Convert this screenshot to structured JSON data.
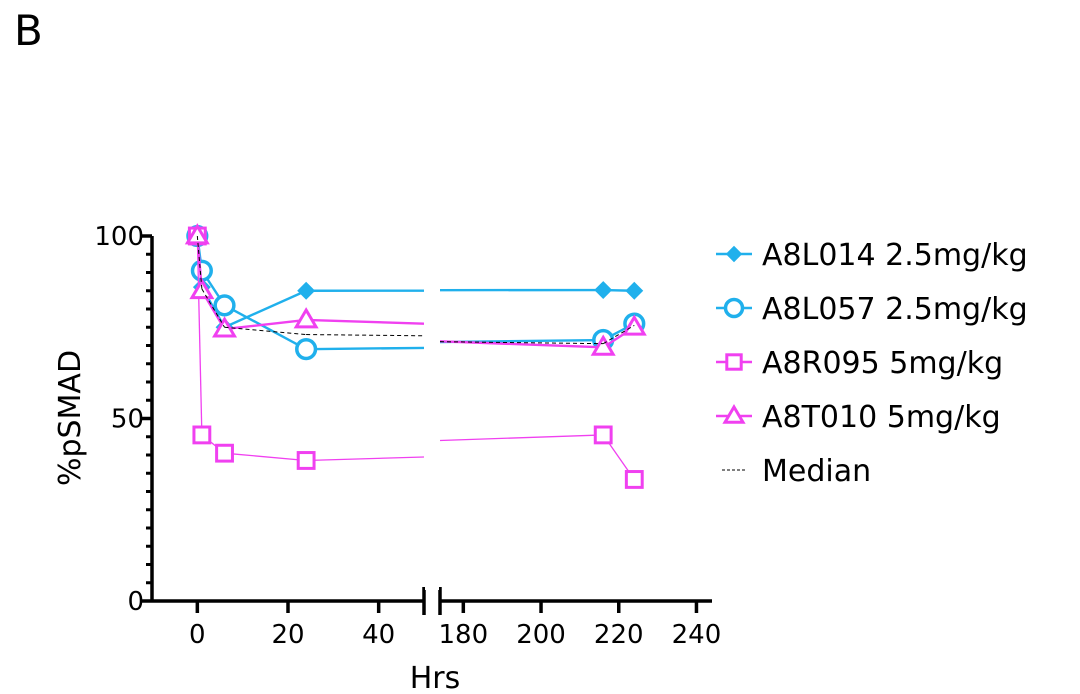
{
  "panel_label": "B",
  "chart_data": {
    "type": "line",
    "xlabel": "Hrs",
    "ylabel": "%pSMAD",
    "ylim": [
      0,
      100
    ],
    "y_ticks": [
      0,
      50,
      100
    ],
    "x_segments": [
      {
        "range": [
          -10,
          50
        ],
        "ticks": [
          0,
          20,
          40
        ]
      },
      {
        "range": [
          174,
          244
        ],
        "ticks": [
          180,
          200,
          220,
          240
        ]
      }
    ],
    "series": [
      {
        "name": "A8L014 2.5mg/kg",
        "color": "#20b0ec",
        "marker": "diamond",
        "line_width": 2.4,
        "x": [
          0,
          1,
          6,
          24,
          216,
          224
        ],
        "y": [
          100,
          86,
          75,
          85,
          85.2,
          85
        ]
      },
      {
        "name": "A8L057 2.5mg/kg",
        "color": "#20b0ec",
        "marker": "circle",
        "line_width": 2.4,
        "x": [
          0,
          1,
          6,
          24,
          216,
          224
        ],
        "y": [
          100,
          90.5,
          81,
          69,
          71.5,
          76
        ]
      },
      {
        "name": "A8R095 5mg/kg",
        "color": "#f040f0",
        "marker": "square",
        "line_width": 1.3,
        "x": [
          0,
          1,
          6,
          24,
          216,
          224
        ],
        "y": [
          100,
          45.5,
          40.5,
          38.5,
          45.5,
          33.3
        ]
      },
      {
        "name": "A8T010 5mg/kg",
        "color": "#f040f0",
        "marker": "triangle",
        "line_width": 2.4,
        "x": [
          0,
          1,
          6,
          24,
          216,
          224
        ],
        "y": [
          100,
          85,
          74.5,
          77,
          69.5,
          75
        ]
      },
      {
        "name": "Median",
        "color": "#000000",
        "marker": "none",
        "dashed": true,
        "line_width": 1,
        "x": [
          0,
          1,
          6,
          24,
          216,
          224
        ],
        "y": [
          100,
          85.5,
          75,
          73,
          70.5,
          75.5
        ]
      }
    ]
  }
}
